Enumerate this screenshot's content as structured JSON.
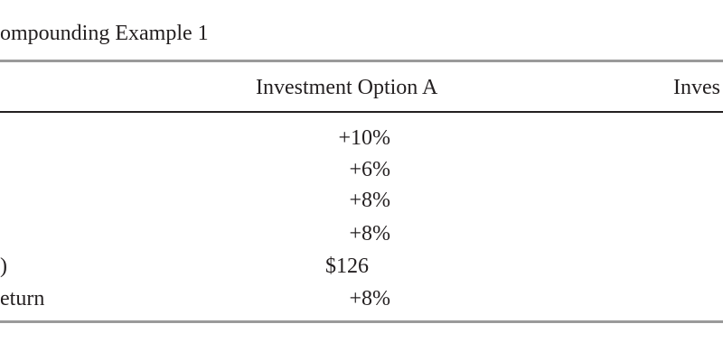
{
  "header": {
    "title": "ompounding Example 1"
  },
  "table": {
    "columns": [
      "Investment Option A",
      "Inves"
    ],
    "rows": [
      {
        "option_a": "+10%"
      },
      {
        "option_a": "+6%"
      },
      {
        "option_a": "+8%"
      },
      {
        "option_a": "+8%"
      },
      {
        "label": ")",
        "option_a": "$126"
      },
      {
        "label": "eturn",
        "option_a": "+8%"
      }
    ]
  }
}
